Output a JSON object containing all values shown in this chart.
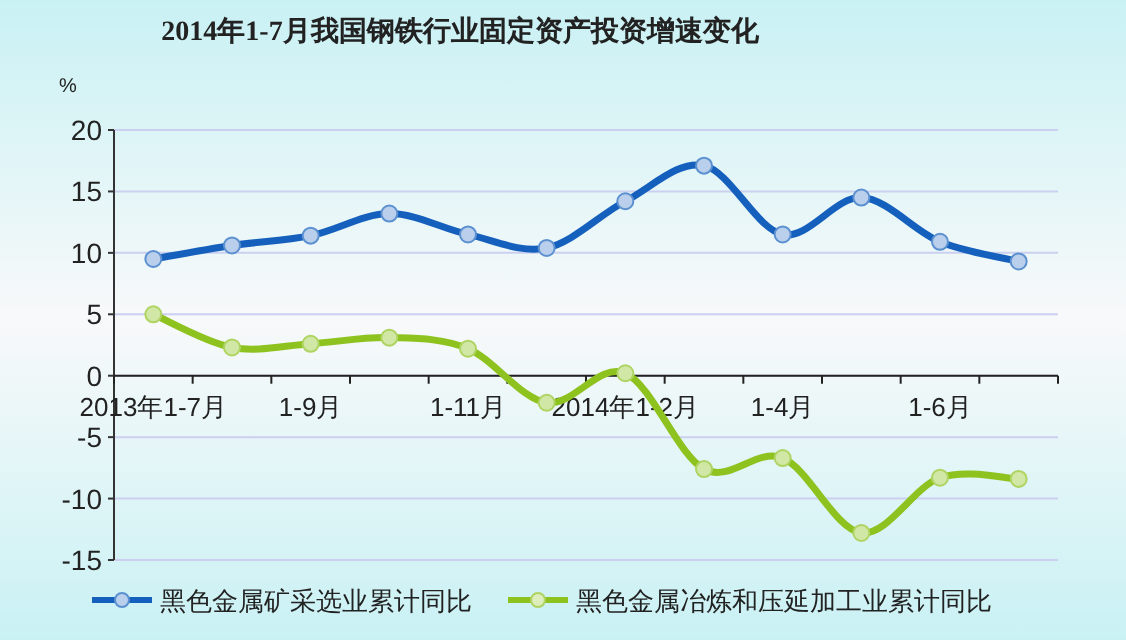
{
  "chart_data": {
    "type": "line",
    "title": "2014年1-7月我国钢铁行业固定资产投资增速变化",
    "ylabel": "%",
    "categories": [
      "2013年1-7月",
      null,
      "1-9月",
      null,
      "1-11月",
      null,
      "2014年1-2月",
      null,
      "1-4月",
      null,
      "1-6月",
      null
    ],
    "series": [
      {
        "name": "黑色金属矿采选业累计同比",
        "color": "#1560bd",
        "values": [
          9.5,
          10.6,
          11.4,
          13.2,
          11.5,
          10.4,
          14.2,
          17.1,
          11.5,
          14.5,
          10.9,
          9.3
        ]
      },
      {
        "name": "黑色金属冶炼和压延加工业累计同比",
        "color": "#8dc21f",
        "values": [
          5.0,
          2.3,
          2.6,
          3.1,
          2.2,
          -2.2,
          0.2,
          -7.6,
          -6.7,
          -12.8,
          -8.3,
          -8.4
        ]
      }
    ],
    "ylim": [
      -15,
      20
    ],
    "yticks": [
      -15,
      -10,
      -5,
      0,
      5,
      10,
      15,
      20
    ],
    "grid": "y",
    "legend": "bottom",
    "marker": "circle",
    "line_style": "solid"
  }
}
